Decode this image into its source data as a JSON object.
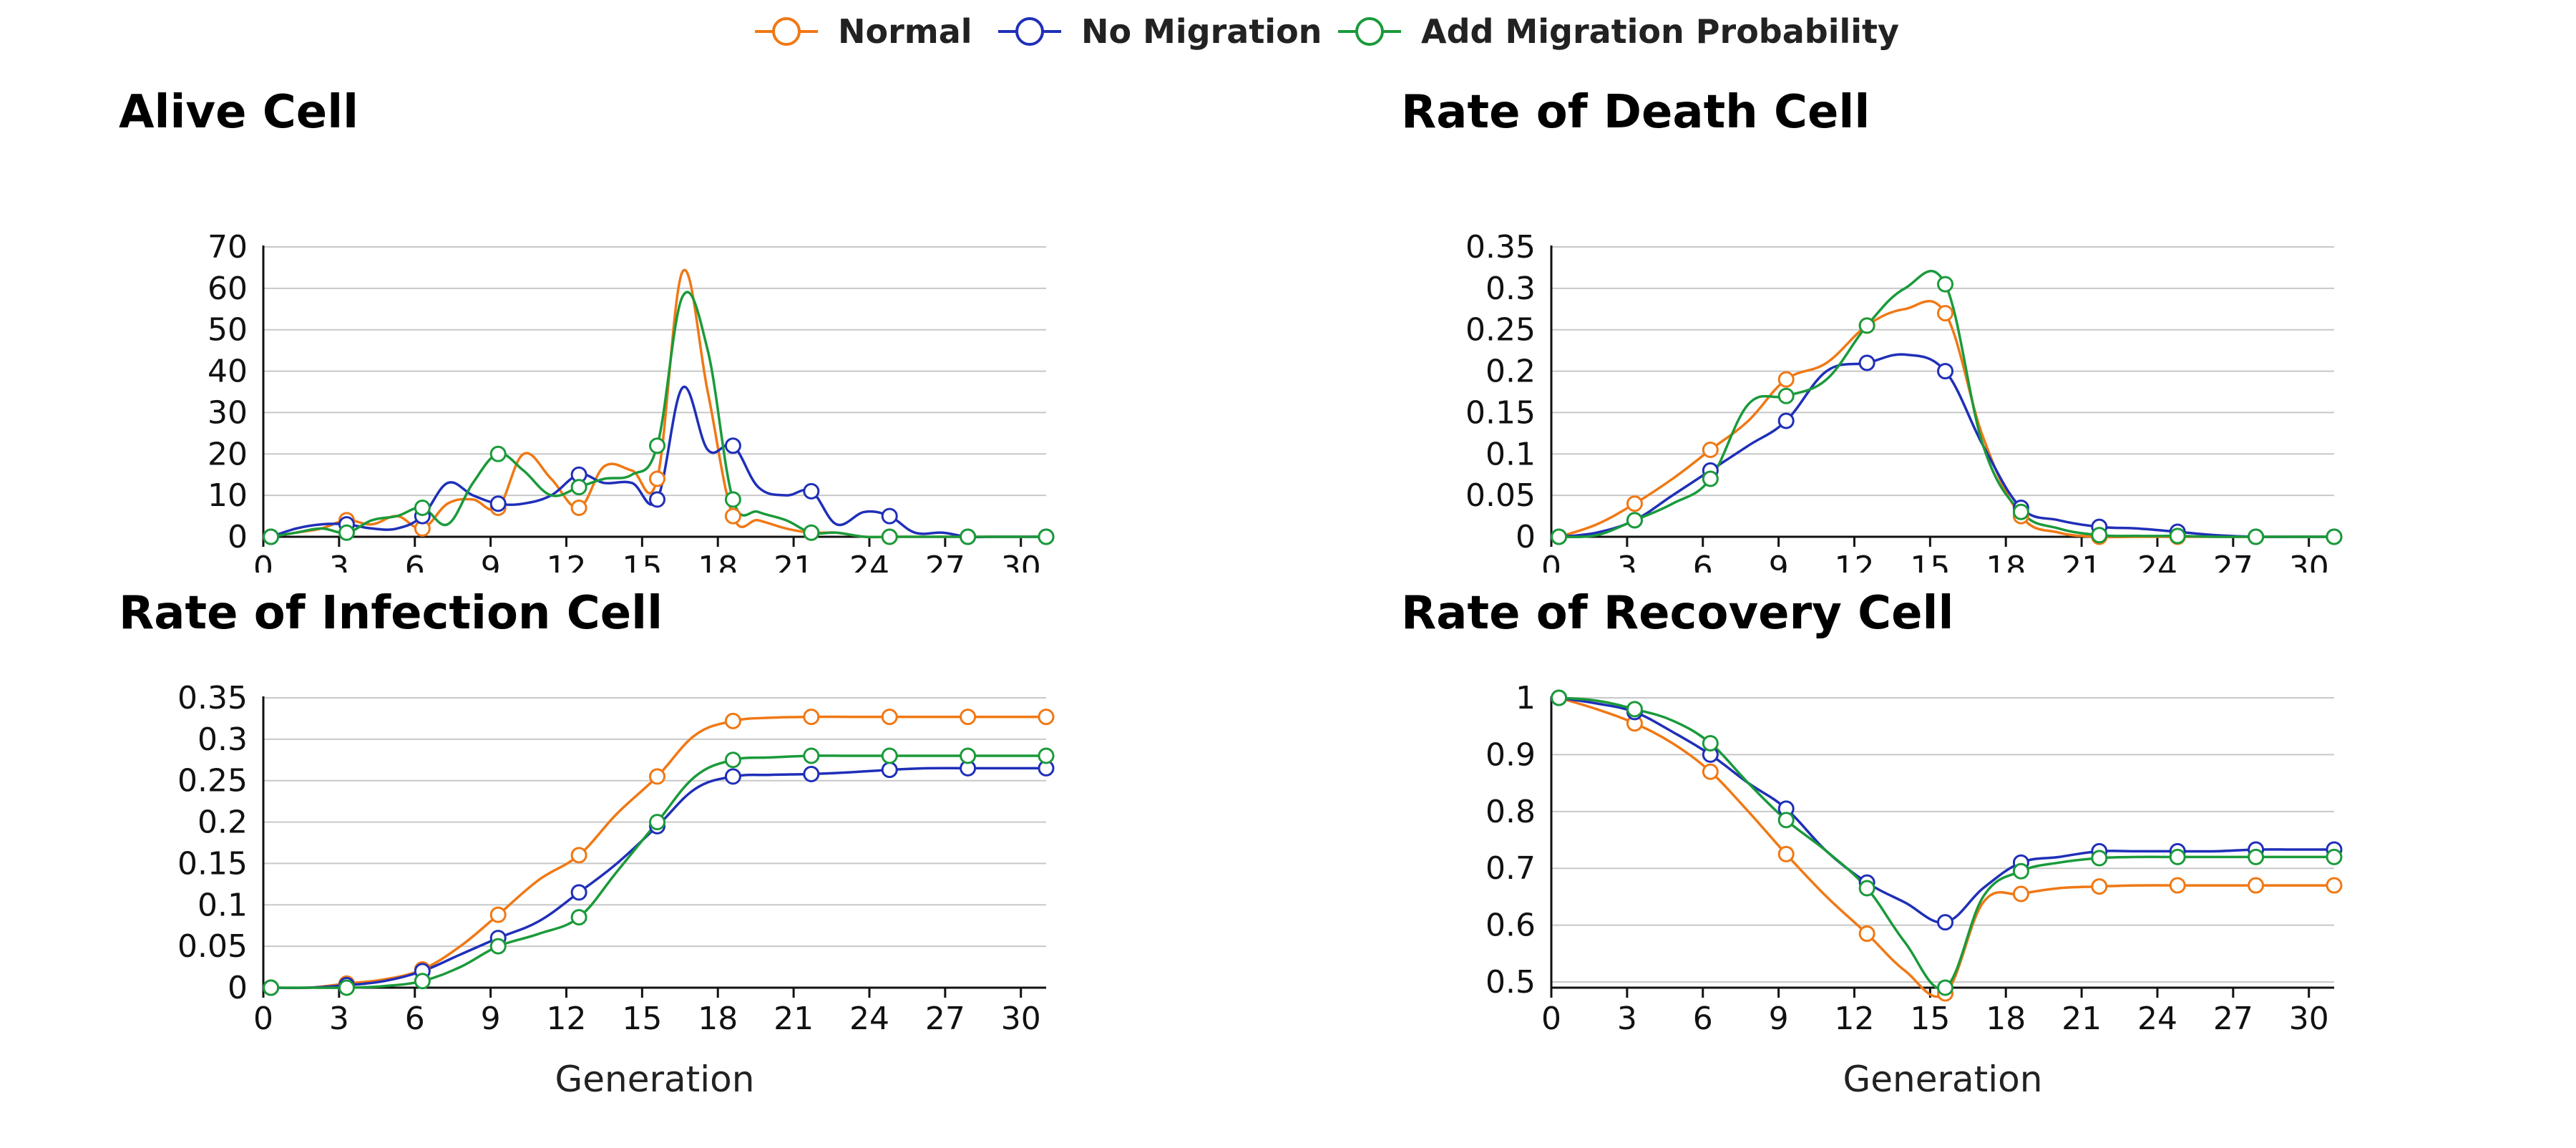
{
  "legend": [
    {
      "name": "Normal",
      "color": "#F07814"
    },
    {
      "name": "No Migration",
      "color": "#1F2FB8"
    },
    {
      "name": "Add Migration Probability",
      "color": "#1A9A3A"
    }
  ],
  "xlabel": "Generation",
  "x_ticks": [
    0,
    3,
    6,
    9,
    12,
    15,
    18,
    21,
    24,
    27,
    30
  ],
  "chart_data": [
    {
      "type": "line",
      "title": "Alive Cell",
      "xlabel": "Generation",
      "ylabel": "",
      "xlim": [
        0,
        31
      ],
      "ylim": [
        0,
        70
      ],
      "y_ticks": [
        "0",
        "10",
        "20",
        "30",
        "40",
        "50",
        "60",
        "70"
      ],
      "y_tick_values": [
        0,
        10,
        20,
        30,
        40,
        50,
        60,
        70
      ],
      "grid": true,
      "marker_x": [
        0.3,
        3.3,
        6.3,
        9.3,
        12.5,
        15.6,
        18.6,
        21.7,
        24.8,
        27.9,
        31
      ],
      "series": [
        {
          "name": "Normal",
          "x": [
            0.3,
            1.3,
            2.3,
            3.3,
            4.3,
            5.3,
            6.3,
            7.3,
            8.3,
            9.3,
            10.3,
            11.4,
            12.5,
            13.5,
            14.6,
            15.6,
            16.6,
            17.6,
            18.6,
            19.6,
            20.7,
            21.7,
            22.7,
            23.8,
            24.8,
            25.8,
            26.9,
            27.9,
            28.9,
            30,
            31
          ],
          "y": [
            0,
            1,
            2,
            4,
            3,
            5,
            2,
            8,
            9,
            7,
            20,
            14,
            7,
            17,
            16,
            14,
            64,
            35,
            5,
            4,
            2,
            1,
            1,
            0,
            0,
            0,
            0,
            0,
            0,
            0,
            0
          ]
        },
        {
          "name": "No Migration",
          "x": [
            0.3,
            1.3,
            2.3,
            3.3,
            4.3,
            5.3,
            6.3,
            7.3,
            8.3,
            9.3,
            10.3,
            11.4,
            12.5,
            13.5,
            14.6,
            15.6,
            16.6,
            17.6,
            18.6,
            19.6,
            20.7,
            21.7,
            22.7,
            23.8,
            24.8,
            25.8,
            26.9,
            27.9,
            28.9,
            30,
            31
          ],
          "y": [
            0,
            2,
            3,
            3,
            2,
            2,
            5,
            13,
            10,
            8,
            8,
            10,
            15,
            13,
            13,
            9,
            36,
            21,
            22,
            12,
            10,
            11,
            3,
            6,
            5,
            1,
            1,
            0,
            0,
            0,
            0
          ]
        },
        {
          "name": "Add Migration Probability",
          "x": [
            0.3,
            1.3,
            2.3,
            3.3,
            4.3,
            5.3,
            6.3,
            7.3,
            8.3,
            9.3,
            10.3,
            11.4,
            12.5,
            13.5,
            14.6,
            15.6,
            16.6,
            17.6,
            18.6,
            19.6,
            20.7,
            21.7,
            22.7,
            23.8,
            24.8,
            25.8,
            26.9,
            27.9,
            28.9,
            30,
            31
          ],
          "y": [
            0,
            1,
            2,
            1,
            4,
            5,
            7,
            3,
            13,
            20,
            16,
            10,
            12,
            14,
            15,
            22,
            58,
            45,
            9,
            6,
            4,
            1,
            1,
            0,
            0,
            0,
            0,
            0,
            0,
            0,
            0
          ]
        }
      ]
    },
    {
      "type": "line",
      "title": "Rate of Death Cell",
      "xlabel": "Generation",
      "ylabel": "",
      "xlim": [
        0,
        31
      ],
      "ylim": [
        0,
        0.35
      ],
      "y_ticks": [
        "0",
        "0.05",
        "0.1",
        "0.15",
        "0.2",
        "0.25",
        "0.3",
        "0.35"
      ],
      "y_tick_values": [
        0,
        0.05,
        0.1,
        0.15,
        0.2,
        0.25,
        0.3,
        0.35
      ],
      "grid": true,
      "marker_x": [
        0.3,
        3.3,
        6.3,
        9.3,
        12.5,
        15.6,
        18.6,
        21.7,
        24.8,
        27.9,
        31
      ],
      "series": [
        {
          "name": "Normal",
          "x": [
            0.3,
            1.8,
            3.3,
            4.8,
            6.3,
            7.8,
            9.3,
            10.9,
            12.5,
            14,
            15.6,
            17.1,
            18.6,
            20.1,
            21.7,
            23.2,
            24.8,
            26.3,
            27.9,
            29.4,
            31
          ],
          "y": [
            0,
            0.015,
            0.04,
            0.07,
            0.105,
            0.14,
            0.19,
            0.21,
            0.255,
            0.275,
            0.27,
            0.12,
            0.025,
            0.005,
            0,
            0,
            0,
            0,
            0,
            0,
            0
          ]
        },
        {
          "name": "No Migration",
          "x": [
            0.3,
            1.8,
            3.3,
            4.8,
            6.3,
            7.8,
            9.3,
            10.9,
            12.5,
            14,
            15.6,
            17.1,
            18.6,
            20.1,
            21.7,
            23.2,
            24.8,
            26.3,
            27.9,
            29.4,
            31
          ],
          "y": [
            0,
            0.005,
            0.02,
            0.05,
            0.08,
            0.11,
            0.14,
            0.2,
            0.21,
            0.22,
            0.2,
            0.11,
            0.035,
            0.02,
            0.012,
            0.01,
            0.006,
            0.002,
            0,
            0,
            0
          ]
        },
        {
          "name": "Add Migration Probability",
          "x": [
            0.3,
            1.8,
            3.3,
            4.8,
            6.3,
            7.8,
            9.3,
            10.9,
            12.5,
            14,
            15.6,
            17.1,
            18.6,
            20.1,
            21.7,
            23.2,
            24.8,
            26.3,
            27.9,
            29.4,
            31
          ],
          "y": [
            0,
            0.002,
            0.02,
            0.04,
            0.07,
            0.16,
            0.17,
            0.19,
            0.255,
            0.3,
            0.305,
            0.11,
            0.03,
            0.01,
            0.002,
            0.001,
            0.001,
            0,
            0,
            0,
            0
          ]
        }
      ]
    },
    {
      "type": "line",
      "title": "Rate of Infection Cell",
      "xlabel": "Generation",
      "ylabel": "",
      "xlim": [
        0,
        31
      ],
      "ylim": [
        0,
        0.35
      ],
      "y_ticks": [
        "0",
        "0.05",
        "0.1",
        "0.15",
        "0.2",
        "0.25",
        "0.3",
        "0.35"
      ],
      "y_tick_values": [
        0,
        0.05,
        0.1,
        0.15,
        0.2,
        0.25,
        0.3,
        0.35
      ],
      "grid": true,
      "marker_x": [
        0.3,
        3.3,
        6.3,
        9.3,
        12.5,
        15.6,
        18.6,
        21.7,
        24.8,
        27.9,
        31
      ],
      "series": [
        {
          "name": "Normal",
          "x": [
            0.3,
            1.8,
            3.3,
            4.8,
            6.3,
            7.8,
            9.3,
            10.9,
            12.5,
            14,
            15.6,
            17.1,
            18.6,
            20.1,
            21.7,
            23.2,
            24.8,
            26.3,
            27.9,
            29.4,
            31
          ],
          "y": [
            0,
            0,
            0.005,
            0.01,
            0.022,
            0.05,
            0.088,
            0.13,
            0.16,
            0.21,
            0.255,
            0.305,
            0.322,
            0.326,
            0.327,
            0.327,
            0.327,
            0.327,
            0.327,
            0.327,
            0.327
          ]
        },
        {
          "name": "No Migration",
          "x": [
            0.3,
            1.8,
            3.3,
            4.8,
            6.3,
            7.8,
            9.3,
            10.9,
            12.5,
            14,
            15.6,
            17.1,
            18.6,
            20.1,
            21.7,
            23.2,
            24.8,
            26.3,
            27.9,
            29.4,
            31
          ],
          "y": [
            0,
            0,
            0.003,
            0.008,
            0.02,
            0.04,
            0.06,
            0.08,
            0.115,
            0.15,
            0.195,
            0.24,
            0.255,
            0.257,
            0.258,
            0.26,
            0.263,
            0.265,
            0.265,
            0.265,
            0.265
          ]
        },
        {
          "name": "Add Migration Probability",
          "x": [
            0.3,
            1.8,
            3.3,
            4.8,
            6.3,
            7.8,
            9.3,
            10.9,
            12.5,
            14,
            15.6,
            17.1,
            18.6,
            20.1,
            21.7,
            23.2,
            24.8,
            26.3,
            27.9,
            29.4,
            31
          ],
          "y": [
            0,
            0,
            0,
            0.002,
            0.008,
            0.025,
            0.05,
            0.065,
            0.085,
            0.14,
            0.2,
            0.255,
            0.275,
            0.278,
            0.28,
            0.28,
            0.28,
            0.28,
            0.28,
            0.28,
            0.28
          ]
        }
      ]
    },
    {
      "type": "line",
      "title": "Rate of Recovery Cell",
      "xlabel": "Generation",
      "ylabel": "",
      "xlim": [
        0,
        31
      ],
      "ylim": [
        0.49,
        1.0
      ],
      "y_ticks": [
        "0.5",
        "0.6",
        "0.7",
        "0.8",
        "0.9",
        "1"
      ],
      "y_tick_values": [
        0.5,
        0.6,
        0.7,
        0.8,
        0.9,
        1.0
      ],
      "grid": true,
      "marker_x": [
        0.3,
        3.3,
        6.3,
        9.3,
        12.5,
        15.6,
        18.6,
        21.7,
        24.8,
        27.9,
        31
      ],
      "series": [
        {
          "name": "Normal",
          "x": [
            0.3,
            1.8,
            3.3,
            4.8,
            6.3,
            7.8,
            9.3,
            10.9,
            12.5,
            14,
            15.6,
            17.1,
            18.6,
            20.1,
            21.7,
            23.2,
            24.8,
            26.3,
            27.9,
            29.4,
            31
          ],
          "y": [
            1.0,
            0.98,
            0.955,
            0.92,
            0.87,
            0.8,
            0.725,
            0.65,
            0.585,
            0.52,
            0.48,
            0.64,
            0.655,
            0.665,
            0.668,
            0.67,
            0.67,
            0.67,
            0.67,
            0.67,
            0.67
          ]
        },
        {
          "name": "No Migration",
          "x": [
            0.3,
            1.8,
            3.3,
            4.8,
            6.3,
            7.8,
            9.3,
            10.9,
            12.5,
            14,
            15.6,
            17.1,
            18.6,
            20.1,
            21.7,
            23.2,
            24.8,
            26.3,
            27.9,
            29.4,
            31
          ],
          "y": [
            1.0,
            0.99,
            0.975,
            0.94,
            0.9,
            0.85,
            0.805,
            0.73,
            0.675,
            0.64,
            0.605,
            0.665,
            0.71,
            0.72,
            0.73,
            0.73,
            0.73,
            0.73,
            0.733,
            0.733,
            0.733
          ]
        },
        {
          "name": "Add Migration Probability",
          "x": [
            0.3,
            1.8,
            3.3,
            4.8,
            6.3,
            7.8,
            9.3,
            10.9,
            12.5,
            14,
            15.6,
            17.1,
            18.6,
            20.1,
            21.7,
            23.2,
            24.8,
            26.3,
            27.9,
            29.4,
            31
          ],
          "y": [
            1.0,
            0.995,
            0.98,
            0.96,
            0.92,
            0.85,
            0.785,
            0.73,
            0.665,
            0.57,
            0.49,
            0.65,
            0.695,
            0.71,
            0.718,
            0.72,
            0.72,
            0.72,
            0.72,
            0.72,
            0.72
          ]
        }
      ]
    }
  ]
}
